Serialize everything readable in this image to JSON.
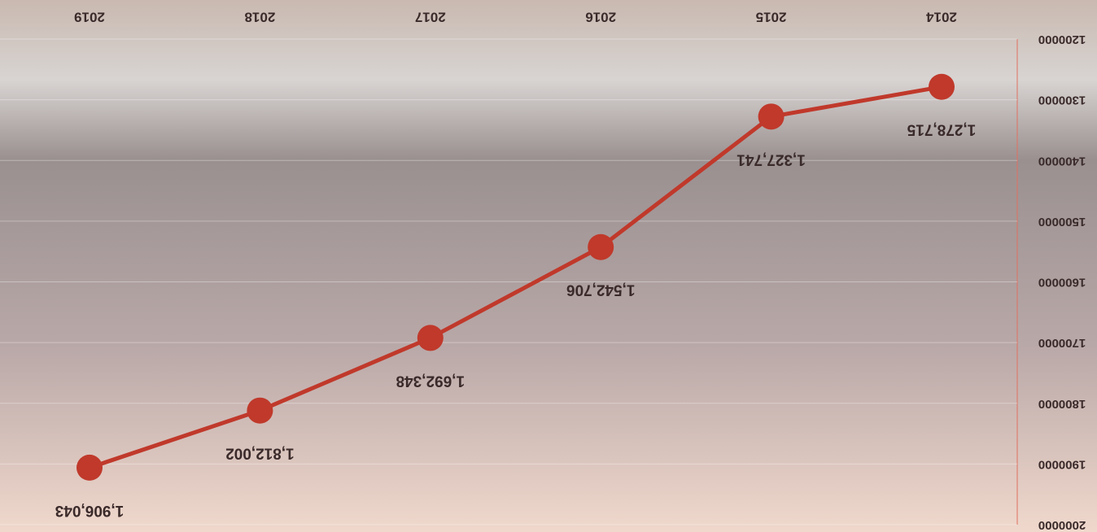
{
  "chart_data": {
    "type": "line",
    "categories": [
      "2014",
      "2015",
      "2016",
      "2017",
      "2018",
      "2019"
    ],
    "series": [
      {
        "color": "#c0392b",
        "values": [
          1278715,
          1327741,
          1542706,
          1692348,
          1812002,
          1906043
        ],
        "value_labels": [
          "1,278,715",
          "1,327,741",
          "1,542,706",
          "1,692,348",
          "1,812,002",
          "1,906,043"
        ]
      }
    ],
    "ylim": [
      1200000,
      2000000
    ],
    "yticks": [
      1200000,
      1300000,
      1400000,
      1500000,
      1600000,
      1700000,
      1800000,
      1900000,
      2000000
    ],
    "grid": true
  }
}
